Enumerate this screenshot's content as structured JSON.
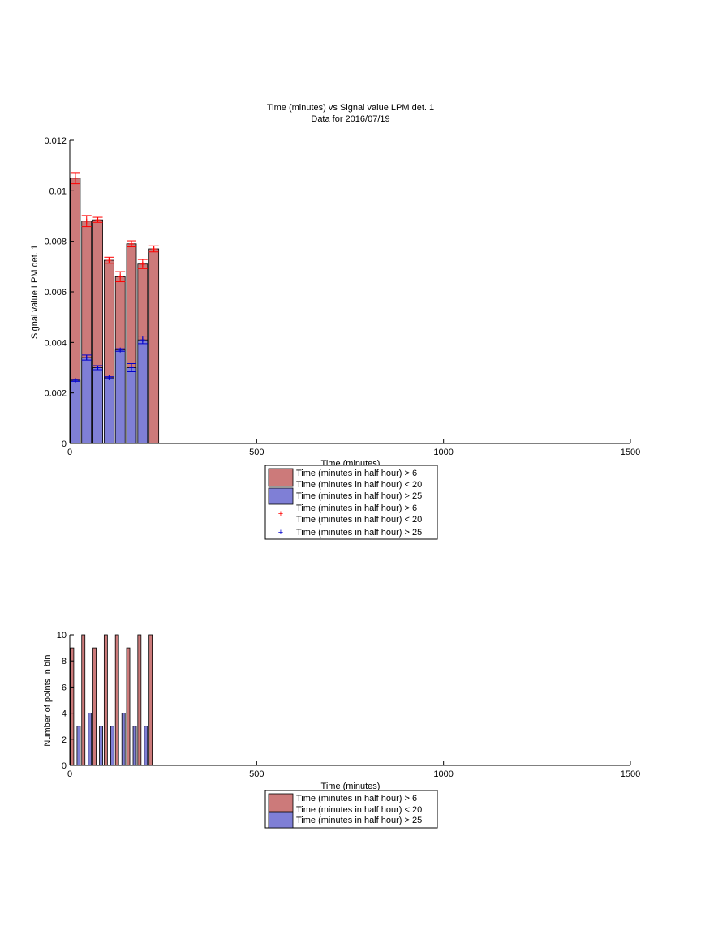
{
  "colors": {
    "red_fill": "#cc7a7a",
    "blue_fill": "#7f7fd6",
    "red_marker": "#ff0000",
    "blue_marker": "#0000cc",
    "axis": "#000000"
  },
  "chart_data": [
    {
      "type": "bar",
      "title": "Time (minutes) vs Signal value LPM det. 1",
      "subtitle": "Data for 2016/07/19",
      "xlabel": "Time (minutes)",
      "ylabel": "Signal value LPM det. 1",
      "xlim": [
        0,
        1500
      ],
      "ylim": [
        0,
        0.012
      ],
      "xticks": [
        "0",
        "500",
        "1000",
        "1500"
      ],
      "xtick_values": [
        0,
        500,
        1000,
        1500
      ],
      "yticks": [
        "0",
        "0.002",
        "0.004",
        "0.006",
        "0.008",
        "0.01",
        "0.012"
      ],
      "ytick_values": [
        0,
        0.002,
        0.004,
        0.006,
        0.008,
        0.01,
        0.012
      ],
      "grid": false,
      "legend_position": "below",
      "legend": [
        {
          "label": "Time (minutes in half hour) > 6",
          "label2": "Time (minutes in half hour) < 20",
          "marker": "red-patch"
        },
        {
          "label": "Time (minutes in half hour) > 25",
          "label2": "",
          "marker": "blue-patch"
        },
        {
          "label": "Time (minutes in half hour) > 6",
          "label2": "Time (minutes in half hour) < 20",
          "marker": "red-plus"
        },
        {
          "label": "Time (minutes in half hour) > 25",
          "label2": "",
          "marker": "blue-plus"
        }
      ],
      "x": [
        15,
        45,
        75,
        105,
        135,
        165,
        195,
        225
      ],
      "series": [
        {
          "values": [
            0.0105,
            0.0088,
            0.00885,
            0.00725,
            0.0066,
            0.0079,
            0.0071,
            0.0077
          ],
          "errors": [
            0.00022,
            0.00022,
            0.0001,
            0.00012,
            0.0002,
            0.00012,
            0.00018,
            0.00012
          ],
          "color": "#cc7a7a"
        },
        {
          "values": [
            0.0025,
            0.0034,
            0.003,
            0.0026,
            0.0037,
            0.003,
            0.0041,
            null
          ],
          "errors": [
            4e-05,
            0.0001,
            8e-05,
            4e-05,
            5e-05,
            0.00016,
            0.00015,
            null
          ],
          "color": "#7f7fd6"
        }
      ]
    },
    {
      "type": "bar",
      "xlabel": "Time (minutes)",
      "ylabel": "Number of points in bin",
      "xlim": [
        0,
        1500
      ],
      "ylim": [
        0,
        10
      ],
      "xticks": [
        "0",
        "500",
        "1000",
        "1500"
      ],
      "xtick_values": [
        0,
        500,
        1000,
        1500
      ],
      "yticks": [
        "0",
        "2",
        "4",
        "6",
        "8",
        "10"
      ],
      "ytick_values": [
        0,
        2,
        4,
        6,
        8,
        10
      ],
      "grid": false,
      "legend_position": "below",
      "legend": [
        {
          "label": "Time (minutes in half hour) > 6",
          "label2": "Time (minutes in half hour) < 20",
          "marker": "red-patch"
        },
        {
          "label": "Time (minutes in half hour) > 25",
          "label2": "",
          "marker": "blue-patch"
        }
      ],
      "x": [
        15,
        45,
        75,
        105,
        135,
        165,
        195,
        225
      ],
      "series": [
        {
          "values": [
            9,
            10,
            9,
            10,
            10,
            9,
            10,
            10
          ],
          "color": "#cc7a7a"
        },
        {
          "values": [
            3,
            4,
            3,
            3,
            4,
            3,
            3,
            0
          ],
          "color": "#7f7fd6"
        }
      ]
    }
  ]
}
